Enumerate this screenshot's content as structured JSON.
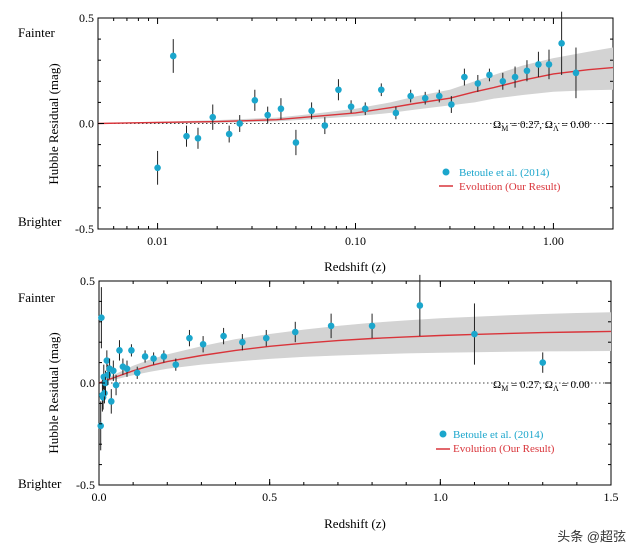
{
  "colors": {
    "point": "#1ba6cc",
    "curve": "#d9343a",
    "band": "#d3d3d3",
    "legend_point_text": "#1ba6cc",
    "legend_curve_text": "#d9343a"
  },
  "watermark": "头条 @超弦",
  "chart_data": [
    {
      "type": "scatter",
      "xscale": "log",
      "title": "",
      "xlabel": "Redshift (z)",
      "ylabel": "Hubble Residual (mag)",
      "xlim": [
        0.005,
        2.0
      ],
      "ylim": [
        -0.5,
        0.5
      ],
      "xticks": [
        0.01,
        0.1,
        1.0
      ],
      "xtick_labels": [
        "0.01",
        "0.10",
        "1.00"
      ],
      "yticks": [
        -0.5,
        0.0,
        0.5
      ],
      "ytick_labels": [
        "-0.5",
        "0.0",
        "0.5"
      ],
      "y_side_labels": {
        "top": "Fainter",
        "bottom": "Brighter"
      },
      "annotation": "Ω_M = 0.27, Ω_Λ = 0.00",
      "legend": {
        "placement": "right",
        "entries": [
          "Betoule et al. (2014)",
          "Evolution (Our Result)"
        ]
      },
      "series": [
        {
          "name": "Betoule et al. (2014)",
          "kind": "points",
          "x": [
            0.01,
            0.012,
            0.014,
            0.016,
            0.019,
            0.023,
            0.026,
            0.031,
            0.036,
            0.042,
            0.05,
            0.06,
            0.07,
            0.082,
            0.095,
            0.112,
            0.135,
            0.16,
            0.19,
            0.225,
            0.265,
            0.305,
            0.355,
            0.415,
            0.475,
            0.555,
            0.64,
            0.735,
            0.84,
            0.95,
            1.1,
            1.3
          ],
          "y": [
            -0.21,
            0.32,
            -0.06,
            -0.07,
            0.03,
            -0.05,
            0.0,
            0.11,
            0.04,
            0.07,
            -0.09,
            0.06,
            -0.01,
            0.16,
            0.08,
            0.07,
            0.16,
            0.05,
            0.13,
            0.12,
            0.13,
            0.09,
            0.22,
            0.19,
            0.23,
            0.2,
            0.22,
            0.25,
            0.28,
            0.28,
            0.38,
            0.24
          ],
          "yerr": [
            0.08,
            0.08,
            0.05,
            0.05,
            0.06,
            0.04,
            0.04,
            0.05,
            0.04,
            0.05,
            0.06,
            0.04,
            0.04,
            0.05,
            0.03,
            0.03,
            0.03,
            0.03,
            0.03,
            0.03,
            0.03,
            0.04,
            0.04,
            0.04,
            0.03,
            0.04,
            0.05,
            0.05,
            0.06,
            0.07,
            0.15,
            0.12
          ]
        },
        {
          "name": "Evolution (Our Result)",
          "kind": "line",
          "x": [
            0.005,
            0.01,
            0.02,
            0.04,
            0.06,
            0.1,
            0.15,
            0.2,
            0.3,
            0.4,
            0.5,
            0.7,
            1.0,
            1.5,
            2.0
          ],
          "y": [
            0.0,
            0.005,
            0.009,
            0.018,
            0.032,
            0.05,
            0.075,
            0.095,
            0.12,
            0.15,
            0.17,
            0.205,
            0.235,
            0.255,
            0.265
          ]
        },
        {
          "name": "uncertainty band",
          "kind": "band",
          "x": [
            0.005,
            0.01,
            0.02,
            0.04,
            0.06,
            0.1,
            0.15,
            0.2,
            0.3,
            0.4,
            0.5,
            0.7,
            1.0,
            1.5,
            2.0
          ],
          "lower": [
            0.0,
            0.0,
            0.003,
            0.01,
            0.02,
            0.034,
            0.05,
            0.066,
            0.086,
            0.1,
            0.118,
            0.135,
            0.15,
            0.158,
            0.16
          ],
          "upper": [
            0.0,
            0.008,
            0.016,
            0.028,
            0.045,
            0.07,
            0.1,
            0.128,
            0.16,
            0.2,
            0.23,
            0.275,
            0.31,
            0.34,
            0.36
          ]
        },
        {
          "name": "Ω_M = 0.27, Ω_Λ = 0.00",
          "kind": "reference_line",
          "y": 0.0
        }
      ]
    },
    {
      "type": "scatter",
      "xscale": "linear",
      "title": "",
      "xlabel": "Redshift (z)",
      "ylabel": "Hubble Residual (mag)",
      "xlim": [
        0.0,
        1.5
      ],
      "ylim": [
        -0.5,
        0.5
      ],
      "xticks": [
        0.0,
        0.5,
        1.0,
        1.5
      ],
      "xtick_labels": [
        "0.0",
        "0.5",
        "1.0",
        "1.5"
      ],
      "yticks": [
        -0.5,
        0.0,
        0.5
      ],
      "ytick_labels": [
        "-0.5",
        "0.0",
        "0.5"
      ],
      "y_side_labels": {
        "top": "Fainter",
        "bottom": "Brighter"
      },
      "annotation": "Ω_M = 0.27, Ω_Λ = 0.00",
      "legend": {
        "placement": "bottom-right",
        "entries": [
          "Betoule et al. (2014)",
          "Evolution (Our Result)"
        ]
      },
      "series": [
        {
          "name": "Betoule et al. (2014)",
          "kind": "points",
          "x": [
            0.005,
            0.007,
            0.01,
            0.012,
            0.014,
            0.016,
            0.019,
            0.023,
            0.026,
            0.031,
            0.036,
            0.042,
            0.05,
            0.06,
            0.07,
            0.082,
            0.095,
            0.112,
            0.135,
            0.16,
            0.19,
            0.225,
            0.265,
            0.305,
            0.365,
            0.42,
            0.49,
            0.575,
            0.68,
            0.8,
            0.94,
            1.1,
            1.3
          ],
          "y": [
            -0.21,
            0.32,
            -0.06,
            -0.07,
            0.03,
            -0.05,
            0.0,
            0.11,
            0.04,
            0.07,
            -0.09,
            0.06,
            -0.01,
            0.16,
            0.08,
            0.07,
            0.16,
            0.05,
            0.13,
            0.12,
            0.13,
            0.09,
            0.22,
            0.19,
            0.23,
            0.2,
            0.22,
            0.25,
            0.28,
            0.28,
            0.38,
            0.24,
            0.1
          ],
          "yerr": [
            0.12,
            0.15,
            0.08,
            0.06,
            0.06,
            0.05,
            0.06,
            0.05,
            0.05,
            0.05,
            0.06,
            0.05,
            0.05,
            0.05,
            0.04,
            0.04,
            0.03,
            0.03,
            0.03,
            0.03,
            0.03,
            0.03,
            0.04,
            0.04,
            0.04,
            0.04,
            0.04,
            0.05,
            0.06,
            0.06,
            0.15,
            0.15,
            0.05
          ]
        },
        {
          "name": "Evolution (Our Result)",
          "kind": "line",
          "x": [
            0.0,
            0.02,
            0.05,
            0.1,
            0.15,
            0.2,
            0.3,
            0.4,
            0.5,
            0.6,
            0.7,
            0.8,
            0.9,
            1.0,
            1.1,
            1.2,
            1.3,
            1.4,
            1.5
          ],
          "y": [
            0.0,
            0.012,
            0.03,
            0.06,
            0.085,
            0.105,
            0.135,
            0.16,
            0.18,
            0.195,
            0.208,
            0.218,
            0.226,
            0.233,
            0.238,
            0.243,
            0.247,
            0.25,
            0.253
          ]
        },
        {
          "name": "uncertainty band",
          "kind": "band",
          "x": [
            0.0,
            0.02,
            0.05,
            0.1,
            0.15,
            0.2,
            0.3,
            0.4,
            0.5,
            0.6,
            0.7,
            0.8,
            0.9,
            1.0,
            1.1,
            1.2,
            1.3,
            1.4,
            1.5
          ],
          "lower": [
            0.0,
            0.006,
            0.018,
            0.038,
            0.055,
            0.07,
            0.09,
            0.105,
            0.118,
            0.128,
            0.135,
            0.14,
            0.145,
            0.148,
            0.151,
            0.153,
            0.155,
            0.156,
            0.157
          ],
          "upper": [
            0.0,
            0.018,
            0.045,
            0.085,
            0.115,
            0.14,
            0.18,
            0.215,
            0.24,
            0.262,
            0.28,
            0.295,
            0.307,
            0.317,
            0.325,
            0.332,
            0.338,
            0.343,
            0.347
          ]
        },
        {
          "name": "Ω_M = 0.27, Ω_Λ = 0.00",
          "kind": "reference_line",
          "y": 0.0
        }
      ]
    }
  ]
}
